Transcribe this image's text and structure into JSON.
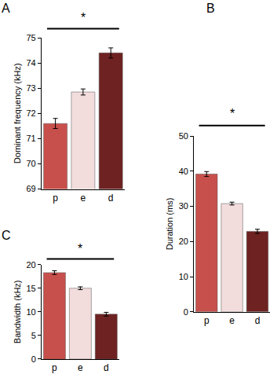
{
  "chart_data": [
    {
      "type": "bar",
      "title": "A",
      "y_label": "Dominant frequency (kHz)",
      "categories": [
        "p",
        "e",
        "d"
      ],
      "values": [
        71.6,
        72.85,
        74.4
      ],
      "errors": [
        0.2,
        0.12,
        0.2
      ],
      "colors": [
        "#c8504c",
        "#f2dcdc",
        "#6e2222"
      ],
      "ylim": [
        69,
        75
      ],
      "yticks": [
        69,
        70,
        71,
        72,
        73,
        74,
        75
      ],
      "grid": false,
      "annotations": [
        {
          "text": "*",
          "from": "p",
          "to": "d"
        }
      ]
    },
    {
      "type": "bar",
      "title": "B",
      "y_label": "Duration (ms)",
      "categories": [
        "p",
        "e",
        "d"
      ],
      "values": [
        39.2,
        30.8,
        22.9
      ],
      "errors": [
        0.7,
        0.4,
        0.6
      ],
      "colors": [
        "#c8504c",
        "#f2dcdc",
        "#6e2222"
      ],
      "ylim": [
        0,
        50
      ],
      "yticks": [
        0,
        10,
        20,
        30,
        40,
        50
      ],
      "grid": false,
      "annotations": [
        {
          "text": "*",
          "from": "p",
          "to": "d"
        }
      ]
    },
    {
      "type": "bar",
      "title": "C",
      "y_label": "Bandwidth (kHz)",
      "categories": [
        "p",
        "e",
        "d"
      ],
      "values": [
        18.3,
        15.0,
        9.5
      ],
      "errors": [
        0.4,
        0.3,
        0.4
      ],
      "colors": [
        "#c8504c",
        "#f2dcdc",
        "#6e2222"
      ],
      "ylim": [
        0,
        20
      ],
      "yticks": [
        0,
        5,
        10,
        15,
        20
      ],
      "grid": false,
      "annotations": [
        {
          "text": "*",
          "from": "p",
          "to": "d"
        }
      ]
    }
  ]
}
